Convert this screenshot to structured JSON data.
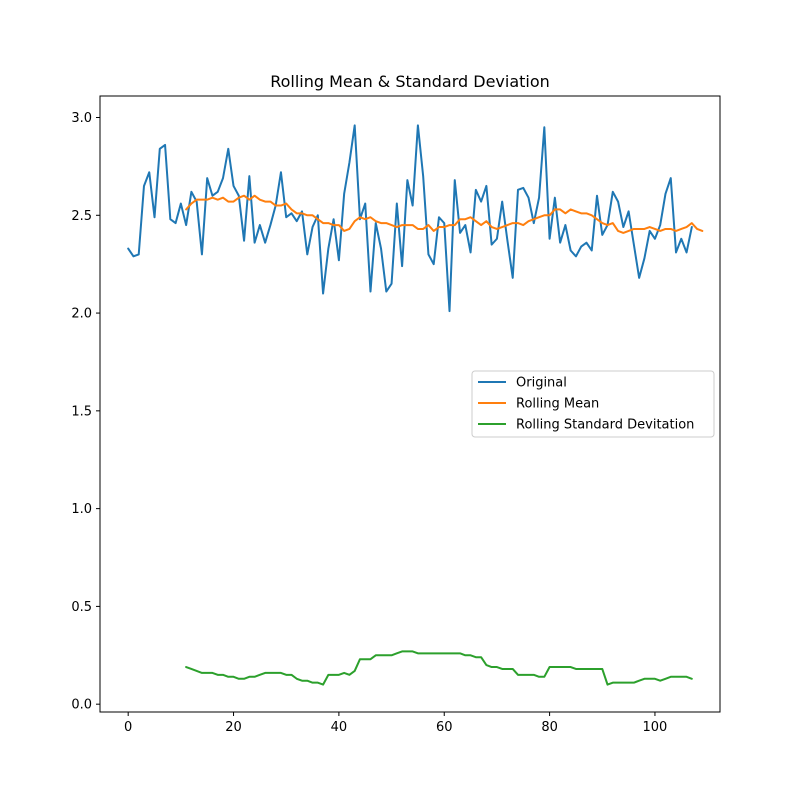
{
  "chart_data": {
    "type": "line",
    "title": "Rolling Mean & Standard Deviation",
    "xlabel": "",
    "ylabel": "",
    "xlim": [
      -5.35,
      112.35
    ],
    "ylim": [
      -0.04,
      3.11
    ],
    "xticks": [
      0,
      20,
      40,
      60,
      80,
      100
    ],
    "yticks": [
      0.0,
      0.5,
      1.0,
      1.5,
      2.0,
      2.5,
      3.0
    ],
    "xtick_labels": [
      "0",
      "20",
      "40",
      "60",
      "80",
      "100"
    ],
    "ytick_labels": [
      "0.0",
      "0.5",
      "1.0",
      "1.5",
      "2.0",
      "2.5",
      "3.0"
    ],
    "grid": false,
    "legend_position": "center-right",
    "series": [
      {
        "name": "Original",
        "color": "#1f77b4",
        "x_start": 0,
        "values": [
          2.33,
          2.29,
          2.3,
          2.65,
          2.72,
          2.49,
          2.84,
          2.86,
          2.48,
          2.46,
          2.56,
          2.45,
          2.62,
          2.57,
          2.3,
          2.69,
          2.6,
          2.62,
          2.69,
          2.84,
          2.65,
          2.6,
          2.37,
          2.7,
          2.36,
          2.45,
          2.36,
          2.45,
          2.55,
          2.72,
          2.49,
          2.51,
          2.47,
          2.52,
          2.3,
          2.44,
          2.5,
          2.1,
          2.33,
          2.48,
          2.27,
          2.61,
          2.77,
          2.96,
          2.48,
          2.56,
          2.11,
          2.46,
          2.33,
          2.11,
          2.15,
          2.56,
          2.24,
          2.68,
          2.55,
          2.96,
          2.7,
          2.3,
          2.25,
          2.49,
          2.46,
          2.01,
          2.68,
          2.41,
          2.45,
          2.31,
          2.63,
          2.57,
          2.65,
          2.35,
          2.38,
          2.57,
          2.37,
          2.18,
          2.63,
          2.64,
          2.59,
          2.46,
          2.59,
          2.95,
          2.38,
          2.59,
          2.36,
          2.45,
          2.32,
          2.29,
          2.34,
          2.36,
          2.32,
          2.6,
          2.4,
          2.45,
          2.62,
          2.57,
          2.44,
          2.52,
          2.35,
          2.18,
          2.28,
          2.42,
          2.38,
          2.45,
          2.61,
          2.69,
          2.31,
          2.38,
          2.31,
          2.44
        ]
      },
      {
        "name": "Rolling Mean",
        "color": "#ff7f0e",
        "x_start": 11,
        "values": [
          2.53,
          2.56,
          2.58,
          2.58,
          2.58,
          2.59,
          2.58,
          2.59,
          2.57,
          2.57,
          2.59,
          2.6,
          2.58,
          2.6,
          2.58,
          2.57,
          2.57,
          2.55,
          2.55,
          2.56,
          2.53,
          2.51,
          2.51,
          2.5,
          2.5,
          2.48,
          2.46,
          2.46,
          2.45,
          2.45,
          2.42,
          2.43,
          2.47,
          2.49,
          2.48,
          2.49,
          2.47,
          2.46,
          2.46,
          2.45,
          2.44,
          2.45,
          2.45,
          2.45,
          2.43,
          2.43,
          2.45,
          2.42,
          2.44,
          2.44,
          2.45,
          2.45,
          2.48,
          2.48,
          2.49,
          2.47,
          2.45,
          2.47,
          2.44,
          2.43,
          2.44,
          2.45,
          2.46,
          2.46,
          2.45,
          2.47,
          2.48,
          2.49,
          2.5,
          2.5,
          2.53,
          2.53,
          2.51,
          2.53,
          2.52,
          2.51,
          2.51,
          2.5,
          2.48,
          2.46,
          2.45,
          2.46,
          2.42,
          2.41,
          2.42,
          2.43,
          2.43,
          2.43,
          2.44,
          2.43,
          2.42,
          2.43,
          2.43,
          2.42,
          2.43,
          2.44,
          2.46,
          2.43,
          2.42
        ]
      },
      {
        "name": "Rolling Standard Devitation",
        "color": "#2ca02c",
        "x_start": 11,
        "values": [
          0.19,
          0.18,
          0.17,
          0.16,
          0.16,
          0.16,
          0.15,
          0.15,
          0.14,
          0.14,
          0.13,
          0.13,
          0.14,
          0.14,
          0.15,
          0.16,
          0.16,
          0.16,
          0.16,
          0.15,
          0.15,
          0.13,
          0.12,
          0.12,
          0.11,
          0.11,
          0.1,
          0.15,
          0.15,
          0.15,
          0.16,
          0.15,
          0.17,
          0.23,
          0.23,
          0.23,
          0.25,
          0.25,
          0.25,
          0.25,
          0.26,
          0.27,
          0.27,
          0.27,
          0.26,
          0.26,
          0.26,
          0.26,
          0.26,
          0.26,
          0.26,
          0.26,
          0.26,
          0.25,
          0.25,
          0.24,
          0.24,
          0.2,
          0.19,
          0.19,
          0.18,
          0.18,
          0.18,
          0.15,
          0.15,
          0.15,
          0.15,
          0.14,
          0.14,
          0.19,
          0.19,
          0.19,
          0.19,
          0.19,
          0.18,
          0.18,
          0.18,
          0.18,
          0.18,
          0.18,
          0.1,
          0.11,
          0.11,
          0.11,
          0.11,
          0.11,
          0.12,
          0.13,
          0.13,
          0.13,
          0.12,
          0.13,
          0.14,
          0.14,
          0.14,
          0.14,
          0.13
        ]
      }
    ]
  }
}
